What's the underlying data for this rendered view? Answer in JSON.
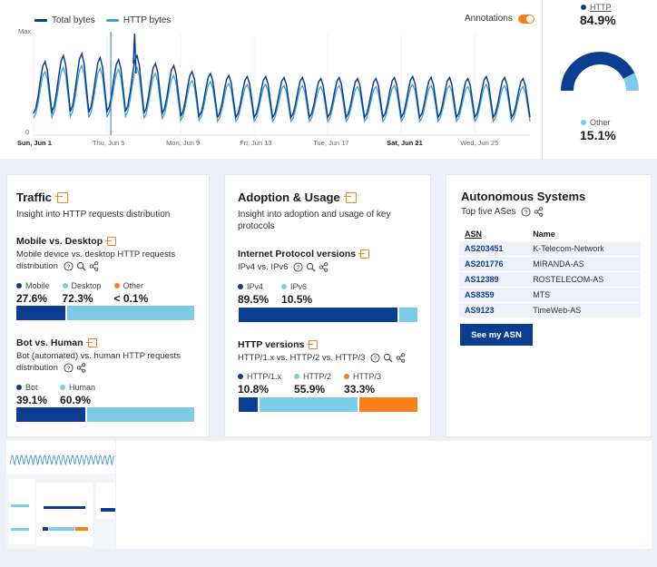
{
  "chart": {
    "legend": [
      {
        "name": "Total bytes",
        "color": "#0b3d91"
      },
      {
        "name": "HTTP bytes",
        "color": "#3aa3d9"
      }
    ],
    "annotations_label": "Annotations",
    "y_labels": [
      "Max",
      "0"
    ],
    "x_labels": [
      {
        "label": "Sun, Jun 1",
        "bold": true
      },
      {
        "label": "Thu, Jun 5",
        "bold": false
      },
      {
        "label": "Mon, Jun 9",
        "bold": false
      },
      {
        "label": "Fri, Jun 13",
        "bold": false
      },
      {
        "label": "Tue, Jun 17",
        "bold": false
      },
      {
        "label": "Sat, Jun 21",
        "bold": true
      },
      {
        "label": "Wed, Jun 25",
        "bold": false
      }
    ]
  },
  "chart_data": {
    "type": "line",
    "title": "",
    "xlabel": "",
    "ylabel": "",
    "y_ticks": [
      "0",
      "Max"
    ],
    "x_ticks": [
      "Sun, Jun 1",
      "Thu, Jun 5",
      "Mon, Jun 9",
      "Fri, Jun 13",
      "Tue, Jun 17",
      "Sat, Jun 21",
      "Wed, Jun 25"
    ],
    "days": 27,
    "series": [
      {
        "name": "Total bytes",
        "daily_peak": [
          0.72,
          0.78,
          0.8,
          0.76,
          0.74,
          0.78,
          0.7,
          0.68,
          0.62,
          0.6,
          0.58,
          0.57,
          0.57,
          0.56,
          0.56,
          0.55,
          0.56,
          0.55,
          0.55,
          0.56,
          0.57,
          0.56,
          0.56,
          0.55,
          0.57,
          0.56,
          0.55
        ],
        "daily_trough": [
          0.2,
          0.22,
          0.22,
          0.21,
          0.22,
          0.22,
          0.2,
          0.2,
          0.17,
          0.17,
          0.16,
          0.16,
          0.16,
          0.16,
          0.16,
          0.16,
          0.16,
          0.16,
          0.16,
          0.16,
          0.16,
          0.16,
          0.16,
          0.16,
          0.16,
          0.16,
          0.16
        ]
      },
      {
        "name": "HTTP bytes",
        "daily_peak": [
          0.62,
          0.66,
          0.68,
          0.65,
          0.64,
          0.66,
          0.6,
          0.58,
          0.53,
          0.52,
          0.5,
          0.49,
          0.49,
          0.48,
          0.48,
          0.47,
          0.48,
          0.47,
          0.47,
          0.48,
          0.49,
          0.48,
          0.48,
          0.47,
          0.49,
          0.48,
          0.47
        ],
        "daily_trough": [
          0.15,
          0.17,
          0.17,
          0.16,
          0.17,
          0.17,
          0.15,
          0.15,
          0.13,
          0.13,
          0.12,
          0.12,
          0.12,
          0.12,
          0.12,
          0.12,
          0.12,
          0.12,
          0.12,
          0.12,
          0.12,
          0.12,
          0.12,
          0.12,
          0.12,
          0.12,
          0.12
        ]
      }
    ],
    "spikes": [
      {
        "series": "Total bytes",
        "day": 5.5,
        "value": 1.0
      }
    ],
    "marker_day": 4.2
  },
  "donut": {
    "http_label": "HTTP",
    "http_value": "84.9%",
    "http_fraction": 0.849,
    "other_label": "Other",
    "other_value": "15.1%",
    "http_color": "#0b3d91",
    "other_color": "#7ccbe8"
  },
  "traffic": {
    "title": "Traffic",
    "desc": "Insight into HTTP requests distribution",
    "mobile": {
      "title": "Mobile vs. Desktop",
      "desc": "Mobile device vs. desktop HTTP requests distribution",
      "items": [
        {
          "label": "Mobile",
          "value": "27.6%",
          "share": 27.6,
          "color": "#0b3d91"
        },
        {
          "label": "Desktop",
          "value": "72.3%",
          "share": 72.3,
          "color": "#7ccbe8"
        },
        {
          "label": "Other",
          "value": "< 0.1%",
          "share": 0.1,
          "color": "#f6821f"
        }
      ]
    },
    "bot": {
      "title": "Bot vs. Human",
      "desc": "Bot (automated) vs. human HTTP requests distribution",
      "items": [
        {
          "label": "Bot",
          "value": "39.1%",
          "share": 39.1,
          "color": "#0b3d91"
        },
        {
          "label": "Human",
          "value": "60.9%",
          "share": 60.9,
          "color": "#7ccbe8"
        }
      ]
    }
  },
  "adoption": {
    "title": "Adoption & Usage",
    "desc": "Insight into adoption and usage of key protocols",
    "ip": {
      "title": "Internet Protocol versions",
      "desc": "IPv4 vs. IPv6",
      "items": [
        {
          "label": "IPv4",
          "value": "89.5%",
          "share": 89.5,
          "color": "#0b3d91"
        },
        {
          "label": "IPv6",
          "value": "10.5%",
          "share": 10.5,
          "color": "#7ccbe8"
        }
      ]
    },
    "http": {
      "title": "HTTP versions",
      "desc": "HTTP/1.x vs. HTTP/2 vs. HTTP/3",
      "items": [
        {
          "label": "HTTP/1.x",
          "value": "10.8%",
          "share": 10.8,
          "color": "#0b3d91"
        },
        {
          "label": "HTTP/2",
          "value": "55.9%",
          "share": 55.9,
          "color": "#7ccbe8"
        },
        {
          "label": "HTTP/3",
          "value": "33.3%",
          "share": 33.3,
          "color": "#f6821f"
        }
      ]
    }
  },
  "as": {
    "title": "Autonomous Systems",
    "desc": "Top five ASes",
    "col_asn": "ASN",
    "col_name": "Name",
    "rows": [
      {
        "asn": "AS203451",
        "name": "K-Telecom-Network"
      },
      {
        "asn": "AS201776",
        "name": "MIRANDA-AS"
      },
      {
        "asn": "AS12389",
        "name": "ROSTELECOM-AS"
      },
      {
        "asn": "AS8359",
        "name": "MTS"
      },
      {
        "asn": "AS9123",
        "name": "TimeWeb-AS"
      }
    ],
    "button": "See my ASN"
  }
}
